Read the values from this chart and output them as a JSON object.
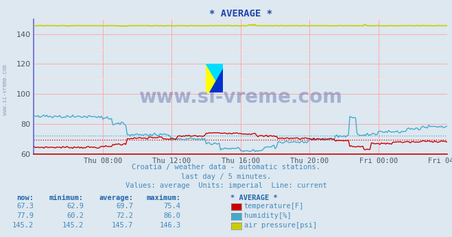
{
  "title": "* AVERAGE *",
  "background_color": "#dde8f0",
  "plot_bg_color": "#dde8f0",
  "xlim": [
    0,
    288
  ],
  "ylim": [
    60,
    150
  ],
  "yticks": [
    60,
    80,
    100,
    120,
    140
  ],
  "grid_major_color": "#ffaaaa",
  "grid_minor_color": "#ffe0e0",
  "x_tick_labels": [
    "Thu 08:00",
    "Thu 12:00",
    "Thu 16:00",
    "Thu 20:00",
    "Fri 00:00",
    "Fri 04:00"
  ],
  "x_tick_positions": [
    48,
    96,
    144,
    192,
    240,
    288
  ],
  "temp_color": "#cc0000",
  "humidity_color": "#44aacc",
  "pressure_color": "#cccc00",
  "avg_temp": 69.7,
  "avg_humidity": 72.2,
  "avg_pressure": 145.7,
  "temp_now": 67.3,
  "temp_min": 62.9,
  "temp_avg": 69.7,
  "temp_max": 75.4,
  "hum_now": 77.9,
  "hum_min": 60.2,
  "hum_avg": 72.2,
  "hum_max": 86.0,
  "pres_now": 145.2,
  "pres_min": 145.2,
  "pres_avg": 145.7,
  "pres_max": 146.3,
  "text_color": "#4488bb",
  "header_color": "#2266aa",
  "watermark": "www.si-vreme.com",
  "subtitle1": "Croatia / weather data - automatic stations.",
  "subtitle2": "last day / 5 minutes.",
  "subtitle3": "Values: average  Units: imperial  Line: current",
  "left_label": "www.si-vreme.com",
  "table_headers": [
    "now:",
    "minimum:",
    "average:",
    "maximum:",
    "* AVERAGE *"
  ],
  "legend_items": [
    "temperature[F]",
    "humidity[%]",
    "air pressure[psi]"
  ],
  "legend_colors": [
    "#cc0000",
    "#44aacc",
    "#cccc00"
  ],
  "spine_left_color": "#6666cc",
  "spine_bottom_color": "#cc0000"
}
